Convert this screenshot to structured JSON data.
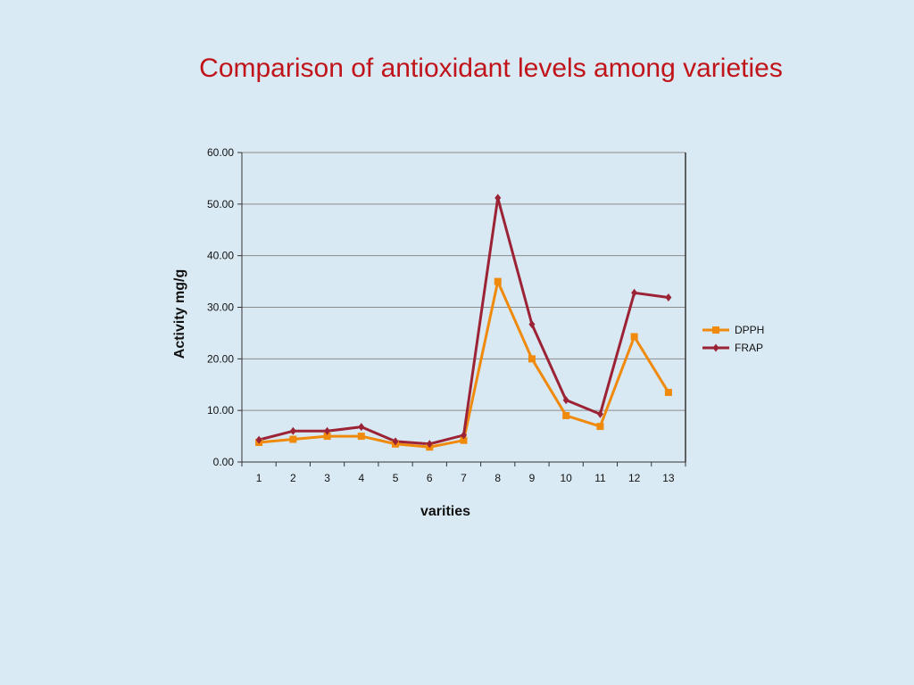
{
  "slide": {
    "title": "Comparison of antioxidant levels among varieties"
  },
  "chart_data": {
    "type": "line",
    "title": "",
    "xlabel": "varities",
    "ylabel": "Activity mg/g",
    "categories": [
      "1",
      "2",
      "3",
      "4",
      "5",
      "6",
      "7",
      "8",
      "9",
      "10",
      "11",
      "12",
      "13"
    ],
    "ylim": [
      0,
      60
    ],
    "yticks": [
      "0.00",
      "10.00",
      "20.00",
      "30.00",
      "40.00",
      "50.00",
      "60.00"
    ],
    "grid": true,
    "legend_position": "right",
    "series": [
      {
        "name": "DPPH",
        "color": "#f08a0c",
        "marker": "square",
        "values": [
          3.8,
          4.4,
          5.0,
          5.0,
          3.5,
          2.9,
          4.2,
          35.0,
          20.0,
          9.0,
          6.9,
          24.3,
          13.5
        ]
      },
      {
        "name": "FRAP",
        "color": "#9b2335",
        "marker": "diamond",
        "values": [
          4.3,
          6.0,
          6.0,
          6.8,
          4.0,
          3.5,
          5.2,
          51.2,
          26.7,
          12.0,
          9.3,
          32.8,
          31.9
        ]
      }
    ]
  }
}
